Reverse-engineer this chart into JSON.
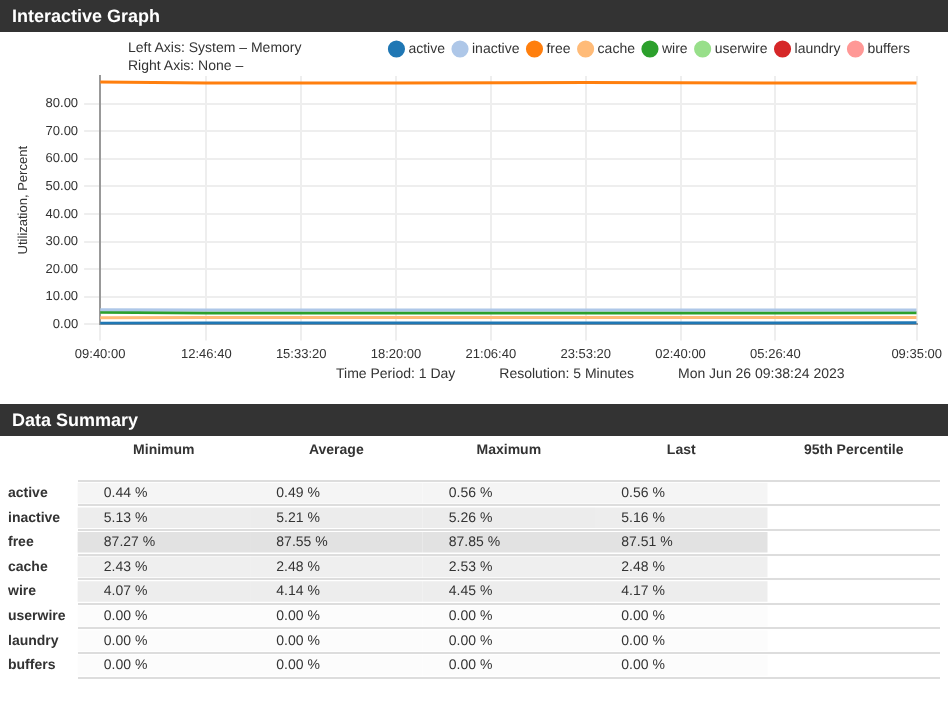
{
  "chart_data": [
    {
      "type": "line",
      "title": "Interactive Graph",
      "ylabel": "Utilization, Percent",
      "annotations": [
        "Left Axis: System – Memory",
        "Right Axis: None –",
        "Time Period: 1 Day",
        "Resolution: 5 Minutes",
        "Mon Jun 26 09:38:24 2023"
      ],
      "x": [
        "2023-06-25T09:40:00",
        "2023-06-25T12:46:40",
        "2023-06-25T18:20:00",
        "2023-06-25T23:53:20",
        "2023-06-26T05:26:40",
        "2023-06-26T09:35:00"
      ],
      "series": [
        {
          "name": "active",
          "color": "#1f77b4",
          "values": [
            0.4,
            0.5,
            0.5,
            0.5,
            0.5,
            0.6
          ]
        },
        {
          "name": "inactive",
          "color": "#aec7e8",
          "values": [
            5.3,
            5.2,
            5.2,
            5.2,
            5.2,
            5.2
          ]
        },
        {
          "name": "free",
          "color": "#ff7f0e",
          "values": [
            87.8,
            87.5,
            87.5,
            87.6,
            87.5,
            87.5
          ]
        },
        {
          "name": "cache",
          "color": "#ffbb78",
          "values": [
            2.4,
            2.5,
            2.5,
            2.5,
            2.5,
            2.5
          ]
        },
        {
          "name": "wire",
          "color": "#2ca02c",
          "values": [
            4.4,
            4.1,
            4.1,
            4.1,
            4.1,
            4.2
          ]
        },
        {
          "name": "userwire",
          "color": "#98df8a",
          "values": [
            null,
            null,
            null,
            null,
            null,
            null
          ]
        },
        {
          "name": "laundry",
          "color": "#d62728",
          "values": [
            null,
            null,
            null,
            null,
            null,
            null
          ]
        },
        {
          "name": "buffers",
          "color": "#ff9896",
          "values": [
            null,
            null,
            null,
            null,
            null,
            null
          ]
        }
      ],
      "xlim": [
        "2023-06-25T09:40:00",
        "2023-06-26T09:35:00"
      ],
      "xticks": [
        {
          "value": "2023-06-25T09:40:00",
          "label": "09:40:00"
        },
        {
          "value": "2023-06-25T12:46:40",
          "label": "12:46:40"
        },
        {
          "value": "2023-06-25T15:33:20",
          "label": "15:33:20"
        },
        {
          "value": "2023-06-25T18:20:00",
          "label": "18:20:00"
        },
        {
          "value": "2023-06-25T21:06:40",
          "label": "21:06:40"
        },
        {
          "value": "2023-06-25T23:53:20",
          "label": "23:53:20"
        },
        {
          "value": "2023-06-26T02:40:00",
          "label": "02:40:00"
        },
        {
          "value": "2023-06-26T05:26:40",
          "label": "05:26:40"
        },
        {
          "value": "2023-06-26T09:35:00",
          "label": "09:35:00"
        }
      ],
      "ylim": [
        0,
        90
      ],
      "yticks": [
        {
          "value": 0,
          "label": "0.00"
        },
        {
          "value": 10,
          "label": "10.00"
        },
        {
          "value": 20,
          "label": "20.00"
        },
        {
          "value": 30,
          "label": "30.00"
        },
        {
          "value": 40,
          "label": "40.00"
        },
        {
          "value": 50,
          "label": "50.00"
        },
        {
          "value": 60,
          "label": "60.00"
        },
        {
          "value": 70,
          "label": "70.00"
        },
        {
          "value": 80,
          "label": "80.00"
        }
      ],
      "grid": true,
      "legend": "top right",
      "marker": "none",
      "line_style": "solid"
    },
    {
      "type": "heatmap",
      "title": "Data Summary",
      "categories": [
        "Minimum",
        "Average",
        "Maximum",
        "Last",
        "95th Percentile"
      ],
      "y_categories": [
        "active",
        "inactive",
        "free",
        "cache",
        "wire",
        "userwire",
        "laundry",
        "buffers"
      ],
      "cells": [
        [
          0.44,
          0.49,
          0.56,
          0.56,
          null
        ],
        [
          5.13,
          5.21,
          5.26,
          5.16,
          null
        ],
        [
          87.27,
          87.55,
          87.85,
          87.51,
          null
        ],
        [
          2.43,
          2.48,
          2.53,
          2.48,
          null
        ],
        [
          4.07,
          4.14,
          4.45,
          4.17,
          null
        ],
        [
          0.0,
          0.0,
          0.0,
          0.0,
          null
        ],
        [
          0.0,
          0.0,
          0.0,
          0.0,
          null
        ],
        [
          0.0,
          0.0,
          0.0,
          0.0,
          null
        ]
      ],
      "cell_labels": [
        [
          "0.44 %",
          "0.49 %",
          "0.56 %",
          "0.56 %",
          null
        ],
        [
          "5.13 %",
          "5.21 %",
          "5.26 %",
          "5.16 %",
          null
        ],
        [
          "87.27 %",
          "87.55 %",
          "87.85 %",
          "87.51 %",
          null
        ],
        [
          "2.43 %",
          "2.48 %",
          "2.53 %",
          "2.48 %",
          null
        ],
        [
          "4.07 %",
          "4.14 %",
          "4.45 %",
          "4.17 %",
          null
        ],
        [
          "0.00 %",
          "0.00 %",
          "0.00 %",
          "0.00 %",
          null
        ],
        [
          "0.00 %",
          "0.00 %",
          "0.00 %",
          "0.00 %",
          null
        ],
        [
          "0.00 %",
          "0.00 %",
          "0.00 %",
          "0.00 %",
          null
        ]
      ]
    }
  ]
}
